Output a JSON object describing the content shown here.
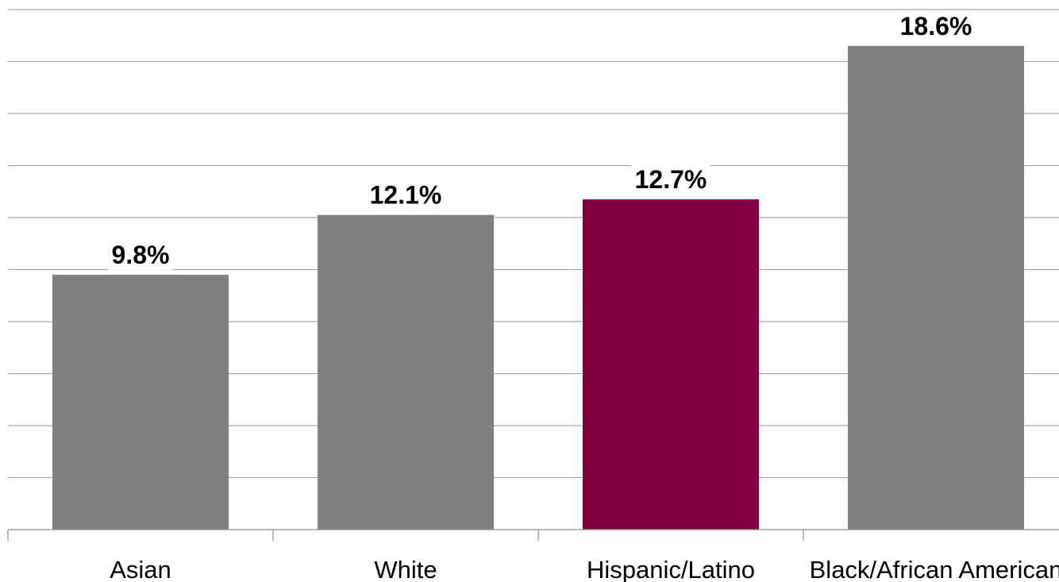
{
  "chart_data": {
    "type": "bar",
    "title": "",
    "xlabel": "",
    "ylabel": "",
    "ylim": [
      0,
      20
    ],
    "grid": true,
    "categories": [
      "Asian",
      "White",
      "Hispanic/Latino",
      "Black/African American"
    ],
    "values": [
      9.8,
      12.1,
      12.7,
      18.6
    ],
    "value_labels": [
      "9.8%",
      "12.1%",
      "12.7%",
      "18.6%"
    ],
    "bar_colors": [
      "#808080",
      "#808080",
      "#800040",
      "#808080"
    ]
  }
}
